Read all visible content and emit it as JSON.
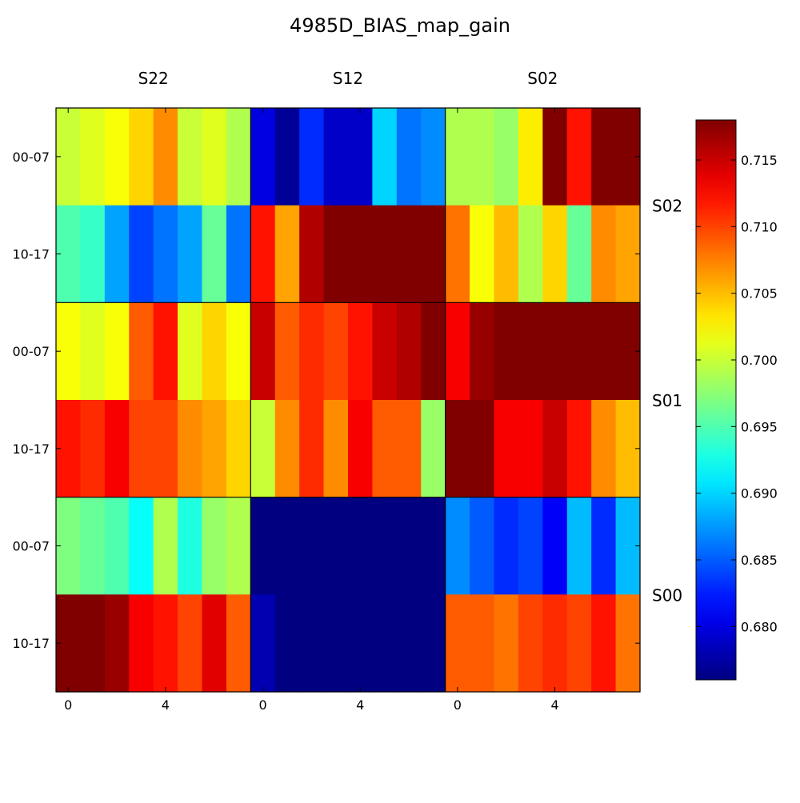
{
  "title": "4985D_BIAS_map_gain",
  "chart_data": {
    "type": "heatmap",
    "title": "4985D_BIAS_map_gain",
    "column_groups": [
      "S22",
      "S12",
      "S02"
    ],
    "row_groups": [
      "S02",
      "S01",
      "S00"
    ],
    "row_labels": [
      "00-07",
      "10-17",
      "00-07",
      "10-17",
      "00-07",
      "10-17"
    ],
    "x_ticks": [
      "0",
      "4",
      "0",
      "4",
      "0",
      "4"
    ],
    "x_tick_values": [
      0,
      4
    ],
    "colormap": "jet",
    "vmin": 0.676,
    "vmax": 0.718,
    "colorbar_ticks": [
      0.68,
      0.685,
      0.69,
      0.695,
      0.7,
      0.705,
      0.71,
      0.715
    ],
    "colorbar_tick_labels": [
      "0.680",
      "0.685",
      "0.690",
      "0.695",
      "0.700",
      "0.705",
      "0.710",
      "0.715"
    ],
    "values": [
      [
        0.7,
        0.701,
        0.702,
        0.704,
        0.707,
        0.7,
        0.701,
        0.699,
        0.68,
        0.677,
        0.683,
        0.679,
        0.679,
        0.69,
        0.686,
        0.687,
        0.699,
        0.699,
        0.698,
        0.703,
        0.718,
        0.712,
        0.718,
        0.718
      ],
      [
        0.695,
        0.694,
        0.688,
        0.684,
        0.686,
        0.688,
        0.696,
        0.686,
        0.712,
        0.706,
        0.716,
        0.718,
        0.718,
        0.718,
        0.718,
        0.718,
        0.708,
        0.702,
        0.705,
        0.699,
        0.704,
        0.696,
        0.707,
        0.706
      ],
      [
        0.702,
        0.701,
        0.702,
        0.709,
        0.712,
        0.701,
        0.704,
        0.702,
        0.715,
        0.709,
        0.711,
        0.71,
        0.712,
        0.715,
        0.716,
        0.718,
        0.713,
        0.717,
        0.718,
        0.718,
        0.718,
        0.718,
        0.718,
        0.718
      ],
      [
        0.712,
        0.711,
        0.713,
        0.71,
        0.71,
        0.707,
        0.706,
        0.704,
        0.7,
        0.707,
        0.711,
        0.707,
        0.713,
        0.709,
        0.709,
        0.698,
        0.718,
        0.718,
        0.713,
        0.713,
        0.715,
        0.712,
        0.707,
        0.705
      ],
      [
        0.697,
        0.696,
        0.695,
        0.692,
        0.699,
        0.693,
        0.698,
        0.699,
        0.676,
        0.676,
        0.676,
        0.676,
        0.676,
        0.676,
        0.676,
        0.676,
        0.687,
        0.685,
        0.683,
        0.684,
        0.681,
        0.689,
        0.683,
        0.689
      ],
      [
        0.718,
        0.718,
        0.717,
        0.713,
        0.712,
        0.71,
        0.714,
        0.709,
        0.678,
        0.676,
        0.676,
        0.676,
        0.676,
        0.676,
        0.676,
        0.676,
        0.709,
        0.709,
        0.708,
        0.71,
        0.711,
        0.71,
        0.712,
        0.708
      ]
    ]
  }
}
